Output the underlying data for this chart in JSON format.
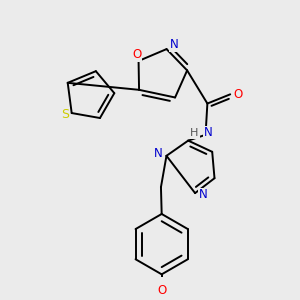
{
  "bg_color": "#ebebeb",
  "bond_color": "#000000",
  "bond_width": 1.4,
  "atom_colors": {
    "O": "#ff0000",
    "N": "#0000cd",
    "S": "#cccc00",
    "C": "#000000",
    "H": "#555555"
  },
  "font_size": 8.5,
  "fig_size": [
    3.0,
    3.0
  ],
  "dpi": 100
}
